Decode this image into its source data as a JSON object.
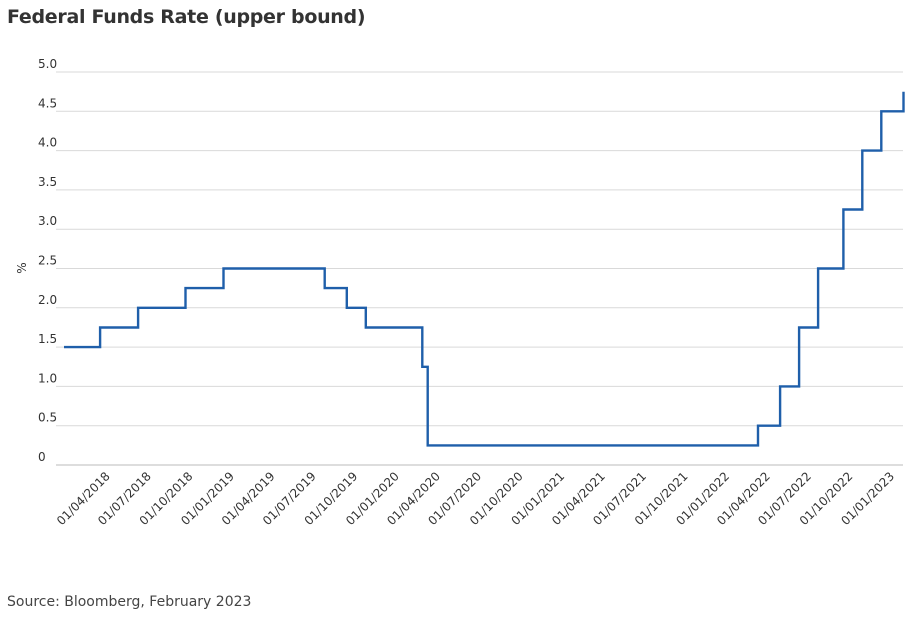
{
  "header": {
    "title": "Federal Funds Rate (upper bound)"
  },
  "footer": {
    "source": "Source: Bloomberg, February 2023"
  },
  "colors": {
    "line": "#1f5faa",
    "grid": "#d9d9d9",
    "axis": "#bbbbbb",
    "text": "#333333"
  },
  "chart_data": {
    "type": "line",
    "step": true,
    "title": "Federal Funds Rate (upper bound)",
    "xlabel": "",
    "ylabel": "%",
    "ylim": [
      0,
      5.0
    ],
    "yticks": [
      "0",
      "0.5",
      "1.0",
      "1.5",
      "2.0",
      "2.5",
      "3.0",
      "3.5",
      "4.0",
      "4.5",
      "5.0"
    ],
    "xlim": [
      "2018-01-01",
      "2023-02-01"
    ],
    "xticks": [
      "01/04/2018",
      "01/07/2018",
      "01/10/2018",
      "01/01/2019",
      "01/04/2019",
      "01/07/2019",
      "01/10/2019",
      "01/01/2020",
      "01/04/2020",
      "01/07/2020",
      "01/10/2020",
      "01/01/2021",
      "01/04/2021",
      "01/07/2021",
      "01/10/2021",
      "01/01/2022",
      "01/04/2022",
      "01/07/2022",
      "01/10/2022",
      "01/01/2023"
    ],
    "grid": true,
    "series": [
      {
        "points": [
          [
            "2018-01-01",
            1.5
          ],
          [
            "2018-03-22",
            1.75
          ],
          [
            "2018-06-14",
            2.0
          ],
          [
            "2018-09-27",
            2.25
          ],
          [
            "2018-12-20",
            2.5
          ],
          [
            "2019-08-01",
            2.25
          ],
          [
            "2019-09-19",
            2.0
          ],
          [
            "2019-10-31",
            1.75
          ],
          [
            "2020-03-04",
            1.25
          ],
          [
            "2020-03-16",
            0.25
          ],
          [
            "2022-03-17",
            0.5
          ],
          [
            "2022-05-05",
            1.0
          ],
          [
            "2022-06-16",
            1.75
          ],
          [
            "2022-07-28",
            2.5
          ],
          [
            "2022-09-22",
            3.25
          ],
          [
            "2022-11-03",
            4.0
          ],
          [
            "2022-12-15",
            4.5
          ],
          [
            "2023-02-02",
            4.75
          ]
        ]
      }
    ]
  }
}
